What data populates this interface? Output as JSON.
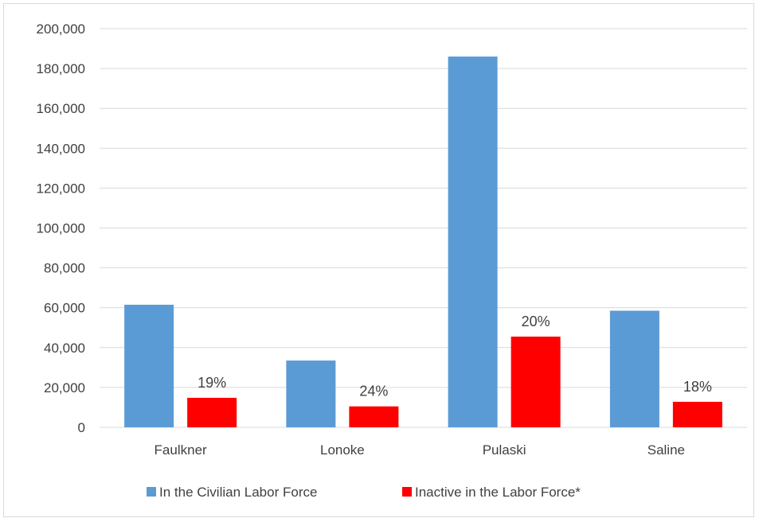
{
  "chart_data": {
    "type": "bar",
    "categories": [
      "Faulkner",
      "Lonoke",
      "Pulaski",
      "Saline"
    ],
    "series": [
      {
        "name": "In the Civilian Labor Force",
        "color": "#5b9bd5",
        "values": [
          61500,
          33500,
          186000,
          58500
        ],
        "labels": []
      },
      {
        "name": "Inactive in the Labor Force*",
        "color": "#ff0000",
        "values": [
          14800,
          10500,
          45500,
          12800
        ],
        "labels": [
          "19%",
          "24%",
          "20%",
          "18%"
        ]
      }
    ],
    "ylim": [
      0,
      200000
    ],
    "yticks": [
      0,
      20000,
      40000,
      60000,
      80000,
      100000,
      120000,
      140000,
      160000,
      180000,
      200000
    ],
    "ytick_labels": [
      "0",
      "20,000",
      "40,000",
      "60,000",
      "80,000",
      "100,000",
      "120,000",
      "140,000",
      "160,000",
      "180,000",
      "200,000"
    ],
    "grid": true,
    "legend": "bottom",
    "gridline_color": "#d9d9d9"
  }
}
